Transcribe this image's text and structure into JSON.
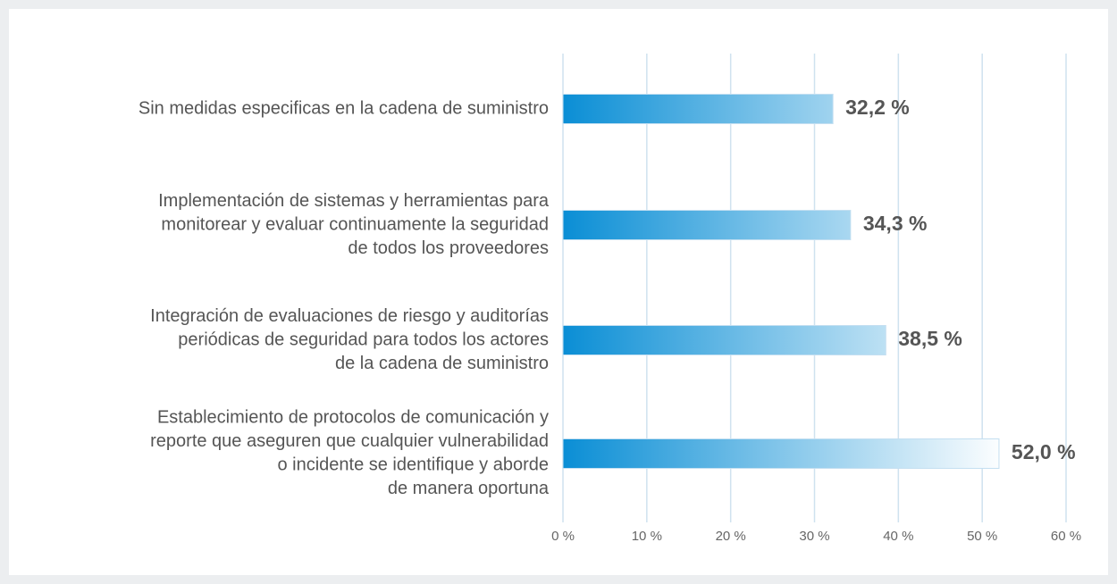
{
  "chart_data": {
    "type": "bar",
    "orientation": "horizontal",
    "categories": [
      [
        "Sin medidas especificas en la cadena de suministro"
      ],
      [
        "Implementación de sistemas y herramientas para",
        "monitorear y evaluar continuamente la seguridad",
        "de todos los proveedores"
      ],
      [
        "Integración de evaluaciones de riesgo y auditorías",
        "periódicas de seguridad para todos los actores",
        "de la cadena de suministro"
      ],
      [
        "Establecimiento de protocolos de comunicación y",
        "reporte que aseguren que cualquier vulnerabilidad",
        "o incidente se identifique y aborde",
        "de manera oportuna"
      ]
    ],
    "values": [
      32.2,
      34.3,
      38.5,
      52.0
    ],
    "value_labels": [
      "32,2 %",
      "34,3 %",
      "38,5 %",
      "52,0 %"
    ],
    "color": "#0a8ed5",
    "xlim": [
      0,
      60
    ],
    "xticks": [
      {
        "value": 0,
        "label": "0 %"
      },
      {
        "value": 10,
        "label": "10 %"
      },
      {
        "value": 20,
        "label": "20 %"
      },
      {
        "value": 30,
        "label": "30 %"
      },
      {
        "value": 40,
        "label": "40 %"
      },
      {
        "value": 50,
        "label": "50 %"
      },
      {
        "value": 60,
        "label": "60 %"
      }
    ],
    "grid": true
  }
}
